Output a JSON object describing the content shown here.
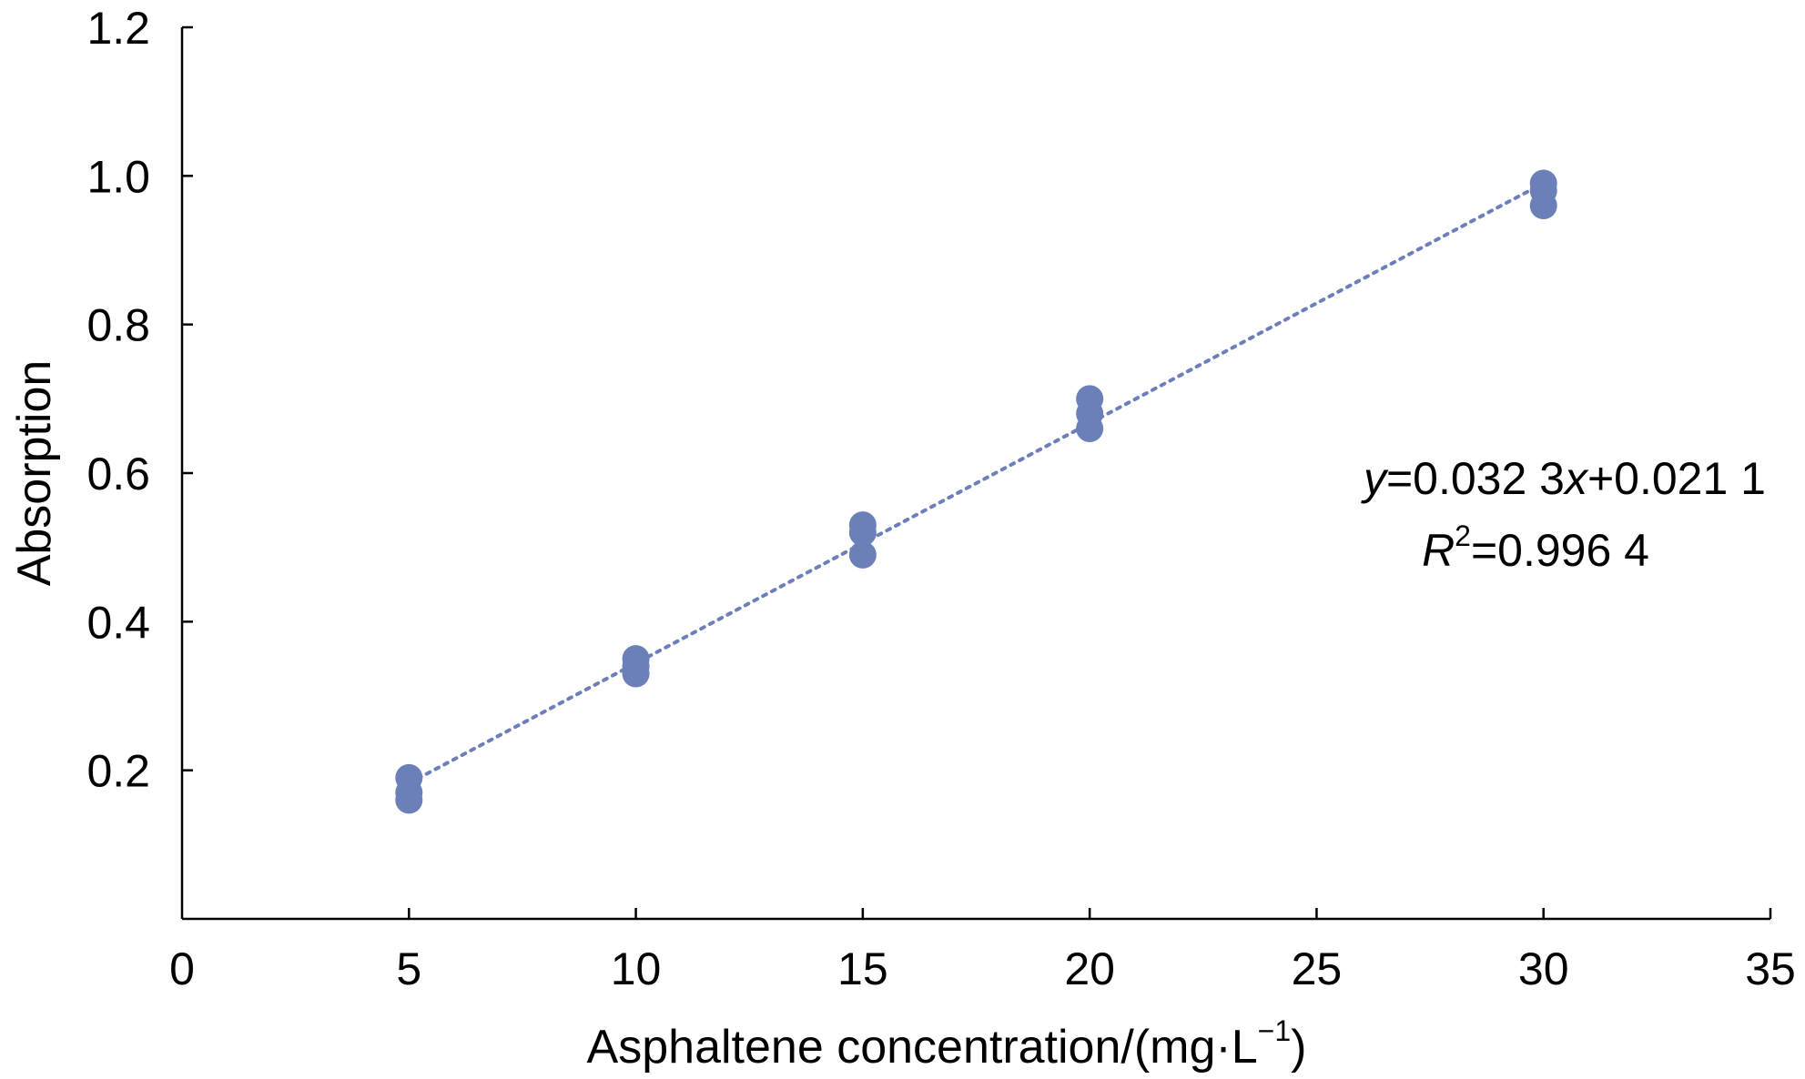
{
  "chart_data": {
    "type": "scatter",
    "title": "",
    "xlabel_main": "Asphaltene concentration/(mg·L",
    "xlabel_sup": "−1",
    "xlabel_close": ")",
    "ylabel": "Absorption",
    "xlim": [
      0,
      35
    ],
    "ylim": [
      0,
      1.2
    ],
    "x_ticks": [
      0,
      5,
      10,
      15,
      20,
      25,
      30,
      35
    ],
    "x_tick_labels": [
      "0",
      "5",
      "10",
      "15",
      "20",
      "25",
      "30",
      "35"
    ],
    "y_ticks": [
      0.2,
      0.4,
      0.6,
      0.8,
      1.0,
      1.2
    ],
    "y_tick_labels": [
      "0.2",
      "0.4",
      "0.6",
      "0.8",
      "1.0",
      "1.2"
    ],
    "grid": false,
    "series": [
      {
        "color": "#6b7fb8",
        "points": [
          {
            "x": 5,
            "y": 0.16
          },
          {
            "x": 5,
            "y": 0.17
          },
          {
            "x": 5,
            "y": 0.19
          },
          {
            "x": 10,
            "y": 0.33
          },
          {
            "x": 10,
            "y": 0.34
          },
          {
            "x": 10,
            "y": 0.35
          },
          {
            "x": 15,
            "y": 0.49
          },
          {
            "x": 15,
            "y": 0.52
          },
          {
            "x": 15,
            "y": 0.53
          },
          {
            "x": 20,
            "y": 0.66
          },
          {
            "x": 20,
            "y": 0.68
          },
          {
            "x": 20,
            "y": 0.7
          },
          {
            "x": 30,
            "y": 0.96
          },
          {
            "x": 30,
            "y": 0.98
          },
          {
            "x": 30,
            "y": 0.99
          }
        ]
      }
    ],
    "trendline": {
      "style": "dotted",
      "color": "#6b7fb8",
      "slope": 0.0323,
      "intercept": 0.0211,
      "x_range": [
        5,
        30
      ]
    },
    "annotation": {
      "eq_y": "y",
      "eq_part1": "=0.032 3",
      "eq_x": "x",
      "eq_part2": "+0.021 1",
      "r2_R": "R",
      "r2_sup": "2",
      "r2_value": "=0.996 4"
    }
  }
}
